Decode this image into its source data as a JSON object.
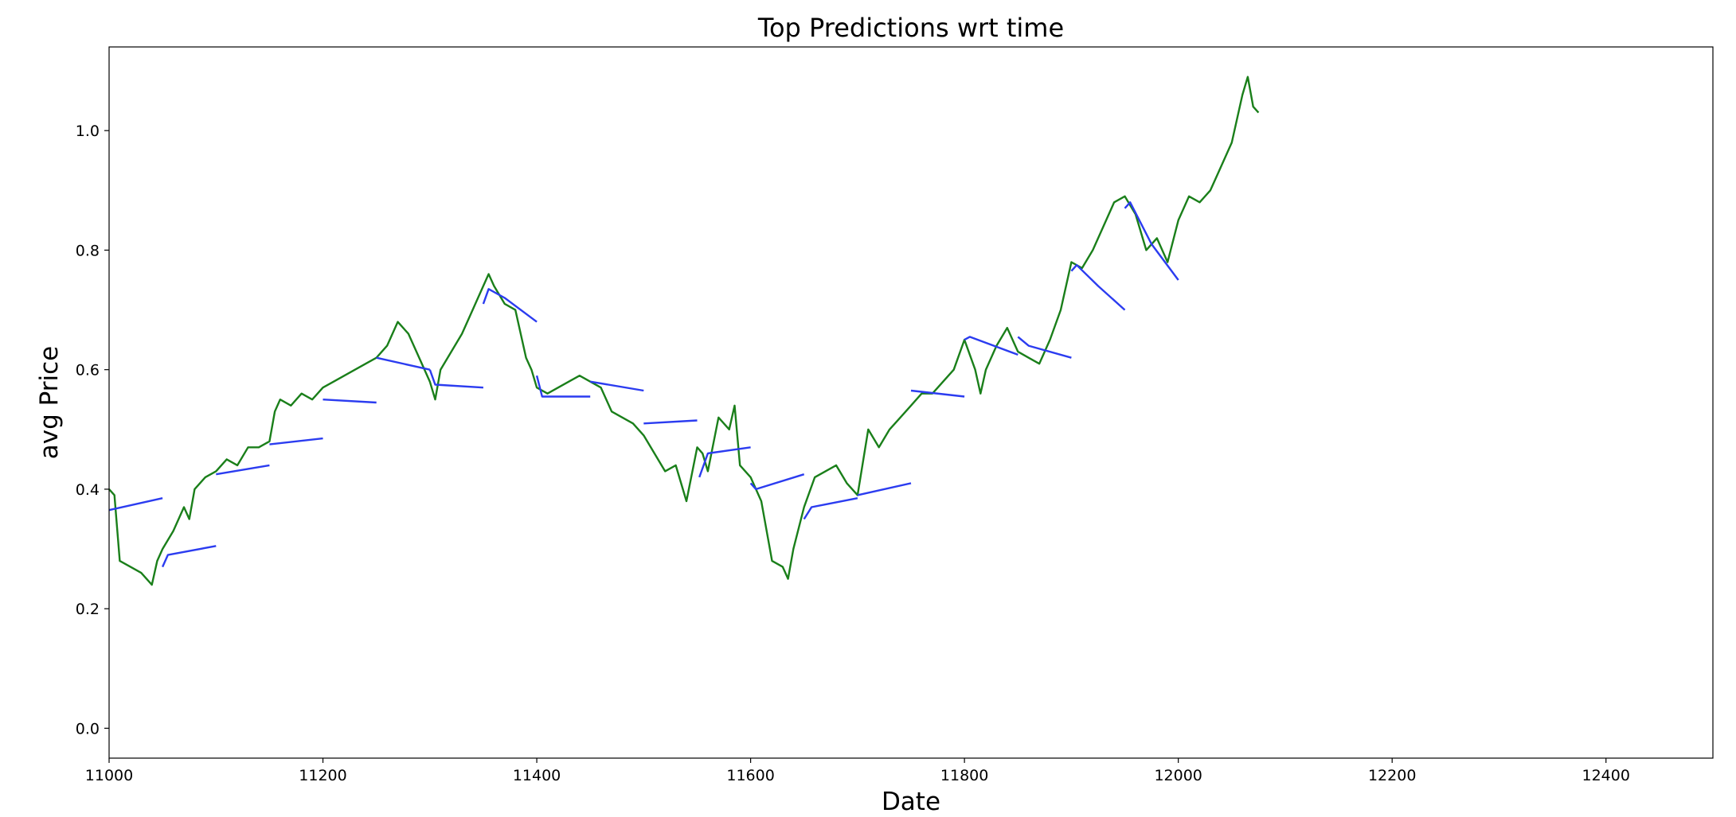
{
  "chart_data": {
    "type": "line",
    "title": "Top Predictions wrt time",
    "x_label": "Date",
    "y_label": "avg Price",
    "xlim": [
      11000,
      12500
    ],
    "ylim": [
      -0.05,
      1.14
    ],
    "xticks": [
      11000,
      11200,
      11400,
      11600,
      11800,
      12000,
      12200,
      12400
    ],
    "yticks": [
      {
        "value": 0,
        "label": "0.0"
      },
      0.2,
      0.4,
      0.6,
      0.8,
      {
        "value": 1,
        "label": "1.0"
      }
    ],
    "series": [
      {
        "color": "#1a7f1a",
        "x": [
          11000,
          11005,
          11010,
          11020,
          11030,
          11040,
          11045,
          11050,
          11060,
          11070,
          11075,
          11080,
          11090,
          11100,
          11110,
          11120,
          11130,
          11140,
          11150,
          11155,
          11160,
          11170,
          11180,
          11190,
          11200,
          11210,
          11220,
          11230,
          11240,
          11250,
          11260,
          11270,
          11280,
          11290,
          11300,
          11305,
          11310,
          11320,
          11330,
          11340,
          11350,
          11355,
          11360,
          11370,
          11380,
          11390,
          11395,
          11400,
          11410,
          11420,
          11430,
          11440,
          11450,
          11460,
          11470,
          11480,
          11490,
          11500,
          11510,
          11520,
          11530,
          11540,
          11550,
          11555,
          11560,
          11570,
          11580,
          11585,
          11590,
          11600,
          11610,
          11620,
          11630,
          11635,
          11640,
          11650,
          11660,
          11670,
          11680,
          11690,
          11700,
          11710,
          11720,
          11730,
          11740,
          11750,
          11760,
          11770,
          11780,
          11790,
          11800,
          11810,
          11815,
          11820,
          11830,
          11840,
          11850,
          11860,
          11870,
          11880,
          11890,
          11900,
          11910,
          11920,
          11930,
          11940,
          11950,
          11960,
          11970,
          11980,
          11990,
          12000,
          12010,
          12020,
          12030,
          12040,
          12050,
          12060,
          12065,
          12070,
          12075
        ],
        "values": [
          0.4,
          0.39,
          0.28,
          0.27,
          0.26,
          0.24,
          0.28,
          0.3,
          0.33,
          0.37,
          0.35,
          0.4,
          0.42,
          0.43,
          0.45,
          0.44,
          0.47,
          0.47,
          0.48,
          0.53,
          0.55,
          0.54,
          0.56,
          0.55,
          0.57,
          0.58,
          0.59,
          0.6,
          0.61,
          0.62,
          0.64,
          0.68,
          0.66,
          0.62,
          0.58,
          0.55,
          0.6,
          0.63,
          0.66,
          0.7,
          0.74,
          0.76,
          0.74,
          0.71,
          0.7,
          0.62,
          0.6,
          0.57,
          0.56,
          0.57,
          0.58,
          0.59,
          0.58,
          0.57,
          0.53,
          0.52,
          0.51,
          0.49,
          0.46,
          0.43,
          0.44,
          0.38,
          0.47,
          0.46,
          0.43,
          0.52,
          0.5,
          0.54,
          0.44,
          0.42,
          0.38,
          0.28,
          0.27,
          0.25,
          0.3,
          0.37,
          0.42,
          0.43,
          0.44,
          0.41,
          0.39,
          0.5,
          0.47,
          0.5,
          0.52,
          0.54,
          0.56,
          0.56,
          0.58,
          0.6,
          0.65,
          0.6,
          0.56,
          0.6,
          0.64,
          0.67,
          0.63,
          0.62,
          0.61,
          0.65,
          0.7,
          0.78,
          0.77,
          0.8,
          0.84,
          0.88,
          0.89,
          0.86,
          0.8,
          0.82,
          0.78,
          0.85,
          0.89,
          0.88,
          0.9,
          0.94,
          0.98,
          1.06,
          1.09,
          1.04,
          1.03
        ]
      },
      {
        "color": "#2b3cf0",
        "x": [
          11000,
          11050
        ],
        "values": [
          0.365,
          0.385
        ]
      },
      {
        "color": "#2b3cf0",
        "x": [
          11050,
          11055,
          11100
        ],
        "values": [
          0.27,
          0.29,
          0.305
        ]
      },
      {
        "color": "#2b3cf0",
        "x": [
          11100,
          11150
        ],
        "values": [
          0.425,
          0.44
        ]
      },
      {
        "color": "#2b3cf0",
        "x": [
          11150,
          11200
        ],
        "values": [
          0.475,
          0.485
        ]
      },
      {
        "color": "#2b3cf0",
        "x": [
          11200,
          11250
        ],
        "values": [
          0.55,
          0.545
        ]
      },
      {
        "color": "#2b3cf0",
        "x": [
          11250,
          11300
        ],
        "values": [
          0.62,
          0.6
        ]
      },
      {
        "color": "#2b3cf0",
        "x": [
          11300,
          11305,
          11350
        ],
        "values": [
          0.6,
          0.575,
          0.57
        ]
      },
      {
        "color": "#2b3cf0",
        "x": [
          11350,
          11355,
          11370,
          11400
        ],
        "values": [
          0.71,
          0.735,
          0.72,
          0.68
        ]
      },
      {
        "color": "#2b3cf0",
        "x": [
          11400,
          11405,
          11450
        ],
        "values": [
          0.59,
          0.555,
          0.555
        ]
      },
      {
        "color": "#2b3cf0",
        "x": [
          11450,
          11500
        ],
        "values": [
          0.58,
          0.565
        ]
      },
      {
        "color": "#2b3cf0",
        "x": [
          11500,
          11550
        ],
        "values": [
          0.51,
          0.515
        ]
      },
      {
        "color": "#2b3cf0",
        "x": [
          11552,
          11560,
          11600
        ],
        "values": [
          0.42,
          0.46,
          0.47
        ]
      },
      {
        "color": "#2b3cf0",
        "x": [
          11600,
          11605,
          11650
        ],
        "values": [
          0.41,
          0.4,
          0.425
        ]
      },
      {
        "color": "#2b3cf0",
        "x": [
          11650,
          11657,
          11700
        ],
        "values": [
          0.35,
          0.37,
          0.385
        ]
      },
      {
        "color": "#2b3cf0",
        "x": [
          11700,
          11750
        ],
        "values": [
          0.39,
          0.41
        ]
      },
      {
        "color": "#2b3cf0",
        "x": [
          11750,
          11800
        ],
        "values": [
          0.565,
          0.555
        ]
      },
      {
        "color": "#2b3cf0",
        "x": [
          11800,
          11805,
          11850
        ],
        "values": [
          0.65,
          0.655,
          0.625
        ]
      },
      {
        "color": "#2b3cf0",
        "x": [
          11850,
          11860,
          11900
        ],
        "values": [
          0.655,
          0.64,
          0.62
        ]
      },
      {
        "color": "#2b3cf0",
        "x": [
          11900,
          11905,
          11925,
          11950
        ],
        "values": [
          0.765,
          0.775,
          0.74,
          0.7
        ]
      },
      {
        "color": "#2b3cf0",
        "x": [
          11950,
          11955,
          11975,
          12000
        ],
        "values": [
          0.87,
          0.88,
          0.81,
          0.75
        ]
      }
    ]
  }
}
